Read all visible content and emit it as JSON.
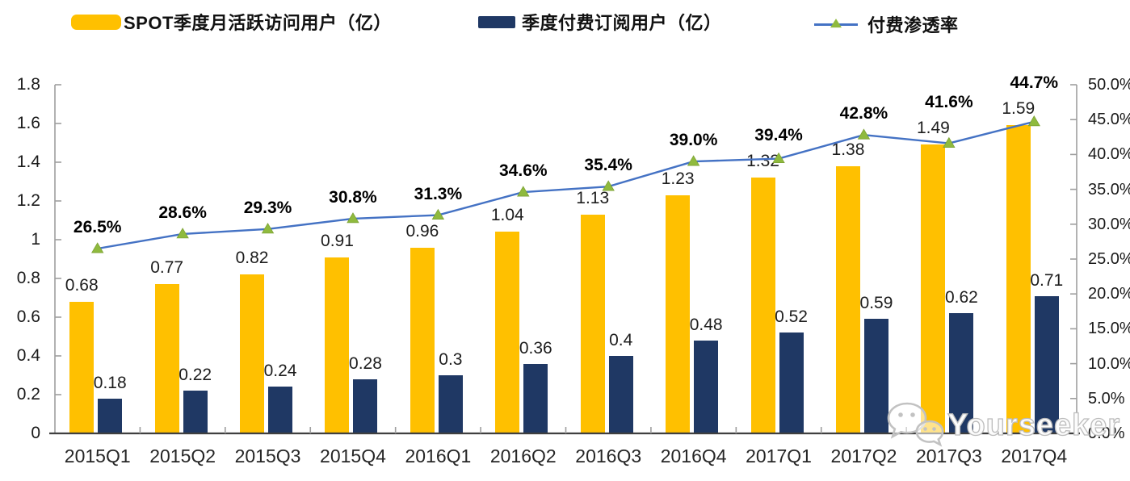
{
  "legend": {
    "items": [
      {
        "label": "SPOT季度月活跃访问用户（亿）",
        "swatch_color": "#FFC000"
      },
      {
        "label": "季度付费订阅用户（亿）",
        "swatch_color": "#1F3864"
      },
      {
        "label": "付费渗透率",
        "line_color": "#4472C4",
        "marker_color": "#8FBA3E"
      }
    ]
  },
  "watermark": {
    "text": "Yourseeker",
    "icon": "wechat-icon"
  },
  "colors": {
    "bar_mau": "#FFC000",
    "bar_subs": "#1F3864",
    "line": "#4472C4",
    "line_marker": "#8FBA3E",
    "axis": "#9e9e9e",
    "baseline": "#3f3f3f"
  },
  "chart_data": {
    "type": "combo-bar-line",
    "categories": [
      "2015Q1",
      "2015Q2",
      "2015Q3",
      "2015Q4",
      "2016Q1",
      "2016Q2",
      "2016Q3",
      "2016Q4",
      "2017Q1",
      "2017Q2",
      "2017Q3",
      "2017Q4"
    ],
    "series": [
      {
        "name": "SPOT季度月活跃访问用户（亿）",
        "type": "bar",
        "axis": "left",
        "color": "#FFC000",
        "values": [
          0.68,
          0.77,
          0.82,
          0.91,
          0.96,
          1.04,
          1.13,
          1.23,
          1.32,
          1.38,
          1.49,
          1.59
        ],
        "labels": [
          "0.68",
          "0.77",
          "0.82",
          "0.91",
          "0.96",
          "1.04",
          "1.13",
          "1.23",
          "1.32",
          "1.38",
          "1.49",
          "1.59"
        ]
      },
      {
        "name": "季度付费订阅用户（亿）",
        "type": "bar",
        "axis": "left",
        "color": "#1F3864",
        "values": [
          0.18,
          0.22,
          0.24,
          0.28,
          0.3,
          0.36,
          0.4,
          0.48,
          0.52,
          0.59,
          0.62,
          0.71
        ],
        "labels": [
          "0.18",
          "0.22",
          "0.24",
          "0.28",
          "0.3",
          "0.36",
          "0.4",
          "0.48",
          "0.52",
          "0.59",
          "0.62",
          "0.71"
        ]
      },
      {
        "name": "付费渗透率",
        "type": "line",
        "axis": "right",
        "color": "#4472C4",
        "marker": "triangle",
        "marker_color": "#8FBA3E",
        "values": [
          26.5,
          28.6,
          29.3,
          30.8,
          31.3,
          34.6,
          35.4,
          39.0,
          39.4,
          42.8,
          41.6,
          44.7
        ],
        "labels": [
          "26.5%",
          "28.6%",
          "29.3%",
          "30.8%",
          "31.3%",
          "34.6%",
          "35.4%",
          "39.0%",
          "39.4%",
          "42.8%",
          "41.6%",
          "44.7%"
        ]
      }
    ],
    "left_axis": {
      "min": 0,
      "max": 1.8,
      "tick_labels": [
        "1.8",
        "1.6",
        "1.4",
        "1.2",
        "1",
        "0.8",
        "0.6",
        "0.4",
        "0.2",
        "0"
      ]
    },
    "right_axis": {
      "min": 0,
      "max": 50,
      "tick_labels": [
        "50.0%",
        "45.0%",
        "40.0%",
        "35.0%",
        "30.0%",
        "25.0%",
        "20.0%",
        "15.0%",
        "10.0%",
        "5.0%",
        "0.0%"
      ]
    },
    "grid": false,
    "legend_position": "top"
  }
}
